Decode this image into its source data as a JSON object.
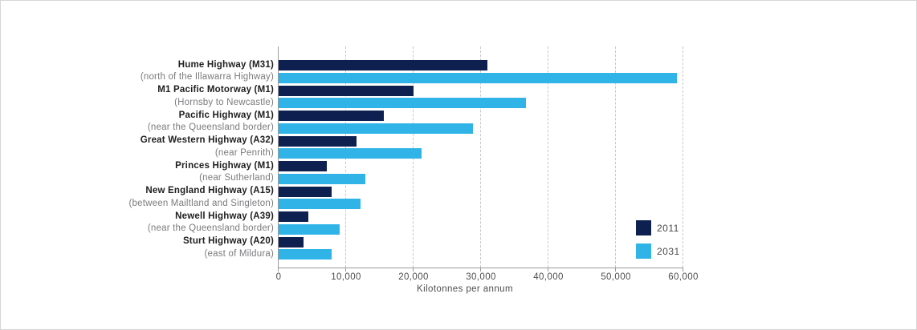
{
  "chart_data": {
    "type": "bar",
    "orientation": "horizontal",
    "title": "",
    "xlabel": "Kilotonnes per annum",
    "xlim": [
      0,
      60000
    ],
    "x_tick_values": [
      0,
      10000,
      20000,
      30000,
      40000,
      50000,
      60000
    ],
    "x_tick_labels": [
      "0",
      "10,000",
      "20,000",
      "30,000",
      "40,000",
      "50,000",
      "60,000"
    ],
    "grid": "vertical-dashed",
    "legend_position": "inside-bottom-right",
    "categories": [
      {
        "label": "Hume Highway (M31)",
        "sublabel": "(north of the Illawarra Highway)"
      },
      {
        "label": "M1 Pacific Motorway (M1)",
        "sublabel": "(Hornsby to Newcastle)"
      },
      {
        "label": "Pacific Highway (M1)",
        "sublabel": "(near the Queensland border)"
      },
      {
        "label": "Great Western Highway (A32)",
        "sublabel": "(near Penrith)"
      },
      {
        "label": "Princes Highway (M1)",
        "sublabel": "(near Sutherland)"
      },
      {
        "label": "New England Highway (A15)",
        "sublabel": "(between Mailtland and Singleton)"
      },
      {
        "label": "Newell Highway (A39)",
        "sublabel": "(near the Queensland border)"
      },
      {
        "label": "Sturt Highway (A20)",
        "sublabel": "(east of Mildura)"
      }
    ],
    "series": [
      {
        "name": "2011",
        "color": "#0e2050",
        "values": [
          31000,
          20000,
          15600,
          11500,
          7100,
          7900,
          4400,
          3700
        ]
      },
      {
        "name": "2031",
        "color": "#30b4e8",
        "values": [
          59000,
          36700,
          28800,
          21200,
          12900,
          12100,
          9100,
          7900
        ]
      }
    ]
  },
  "colors": {
    "axis": "#9a9a9a",
    "gridline": "#c8c8c8",
    "tick_label": "#4d4d4f",
    "category_label": "#202020",
    "category_sublabel": "#7a7b7e",
    "legend_label": "#4b4b4d",
    "background": "#ffffff",
    "frame_border": "#d6d6d6"
  }
}
